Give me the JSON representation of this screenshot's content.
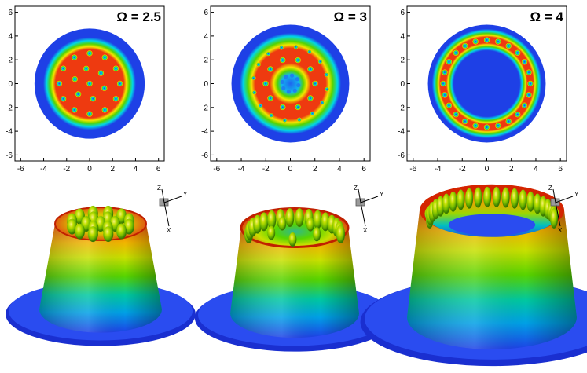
{
  "panels": [
    {
      "omega_label": "Ω = 2.5",
      "vortex_rings": [
        1,
        6,
        12
      ],
      "hole": false
    },
    {
      "omega_label": "Ω = 3",
      "vortex_rings": [
        8
      ],
      "hole": "central-vortex-cluster"
    },
    {
      "omega_label": "Ω = 4",
      "vortex_rings": [
        24
      ],
      "hole": "large-central-hole"
    }
  ],
  "axes": {
    "x_ticks": [
      "-6",
      "-4",
      "-2",
      "0",
      "2",
      "4",
      "6"
    ],
    "y_ticks": [
      "6",
      "4",
      "2",
      "0",
      "-2",
      "-4",
      "-6"
    ],
    "xlim": [
      -6.5,
      6.5
    ],
    "ylim": [
      -6.5,
      6.5
    ]
  },
  "orientation_axes": {
    "z": "Z",
    "y": "Y",
    "x": "X"
  },
  "colors": {
    "low": "#1e40e6",
    "mid_cyan": "#00d7e6",
    "mid_green": "#56d400",
    "mid_yellow": "#f2e600",
    "high": "#ee3a10",
    "max": "#d41c00"
  }
}
